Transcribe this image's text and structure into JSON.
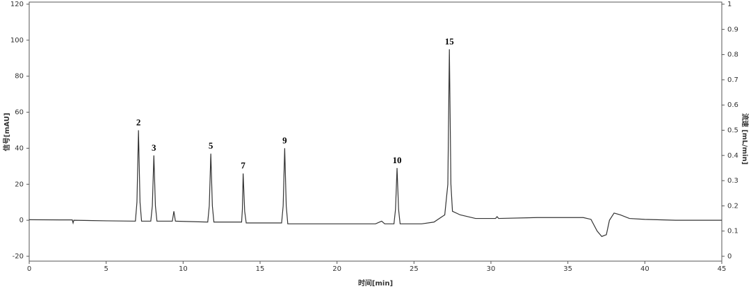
{
  "chart_data": {
    "type": "line",
    "x_label": "时间[min]",
    "y_label": "信号[mAU]",
    "y2_label": "流速 [mL/min]",
    "xlim": [
      0,
      45
    ],
    "xticks": [
      0,
      5,
      10,
      15,
      20,
      25,
      30,
      35,
      40,
      45
    ],
    "ylim": [
      -20,
      120
    ],
    "yticks": [
      -20,
      0,
      20,
      40,
      60,
      80,
      100,
      120
    ],
    "y2lim": [
      0,
      1
    ],
    "y2ticks": [
      0,
      0.1,
      0.2,
      0.3,
      0.4,
      0.5,
      0.6,
      0.7,
      0.8,
      0.9,
      1
    ],
    "series": [
      {
        "name": "信号",
        "color": "#333333",
        "x": [
          0,
          2,
          2.8,
          2.85,
          2.9,
          5,
          6.9,
          7.0,
          7.1,
          7.2,
          7.3,
          7.9,
          8.0,
          8.1,
          8.2,
          8.3,
          9.3,
          9.4,
          9.5,
          11.6,
          11.7,
          11.8,
          11.9,
          12.0,
          13.8,
          13.85,
          13.9,
          14.0,
          14.1,
          16.4,
          16.5,
          16.6,
          16.7,
          16.8,
          20,
          22.5,
          22.9,
          23.1,
          23.7,
          23.8,
          23.9,
          24.0,
          24.1,
          25.5,
          26.3,
          27.0,
          27.2,
          27.3,
          27.4,
          27.5,
          28,
          29,
          30.3,
          30.4,
          30.5,
          33,
          36,
          36.5,
          36.9,
          37.2,
          37.5,
          37.7,
          38,
          38.4,
          39,
          40,
          42,
          45
        ],
        "values": [
          0.3,
          0.2,
          0.2,
          -1.5,
          0,
          -0.3,
          -0.5,
          10,
          50,
          10,
          -0.5,
          -0.5,
          8,
          36,
          8,
          -0.5,
          -0.5,
          5,
          -0.5,
          -1,
          8,
          37,
          8,
          -1,
          -1,
          6,
          26,
          5,
          -1.5,
          -1.5,
          8,
          40,
          8,
          -2,
          -2,
          -2,
          -0.5,
          -2,
          -2,
          6,
          29,
          6,
          -2,
          -2,
          -1,
          3,
          20,
          95,
          20,
          5,
          3,
          1,
          1,
          2,
          1,
          1.5,
          1.5,
          0.5,
          -6,
          -9,
          -8,
          0,
          4,
          3,
          1,
          0.5,
          0,
          0
        ]
      }
    ],
    "peaks": [
      {
        "label": "2",
        "x": 7.1,
        "y": 50
      },
      {
        "label": "3",
        "x": 8.1,
        "y": 36
      },
      {
        "label": "5",
        "x": 11.8,
        "y": 37
      },
      {
        "label": "7",
        "x": 13.9,
        "y": 26
      },
      {
        "label": "9",
        "x": 16.6,
        "y": 40
      },
      {
        "label": "10",
        "x": 23.9,
        "y": 29
      },
      {
        "label": "15",
        "x": 27.3,
        "y": 95
      }
    ]
  }
}
